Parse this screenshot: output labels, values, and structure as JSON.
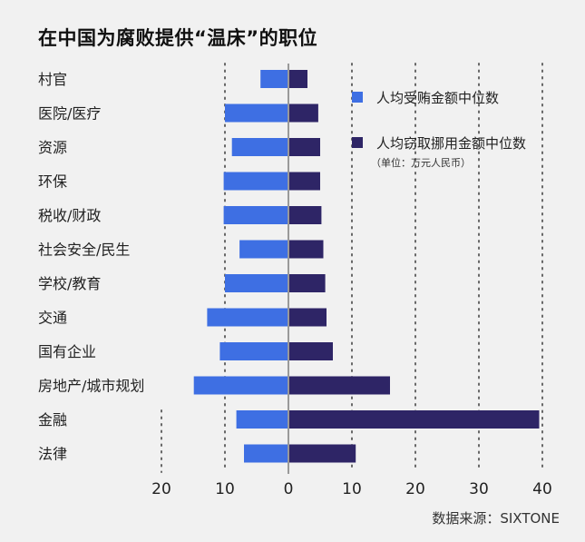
{
  "source": "数据来源：SIXTONE",
  "chart_data": {
    "type": "bar",
    "orientation": "horizontal-diverging",
    "title": "在中国为腐败提供“温床”的职位",
    "categories": [
      "村官",
      "医院/医疗",
      "资源",
      "环保",
      "税收/财政",
      "社会安全/民生",
      "学校/教育",
      "交通",
      "国有企业",
      "房地产/城市规划",
      "金融",
      "法律"
    ],
    "series": [
      {
        "name": "人均受贿金额中位数",
        "direction": "left",
        "color": "#3e6fe3",
        "values": [
          4.4,
          10,
          8.9,
          10.2,
          10.2,
          7.7,
          10,
          12.8,
          10.8,
          14.9,
          8.2,
          7
        ]
      },
      {
        "name": "人均窃取挪用金额中位数",
        "direction": "right",
        "color": "#2e2566",
        "values": [
          3,
          4.7,
          5,
          5,
          5.2,
          5.5,
          5.8,
          6,
          7,
          16,
          39.5,
          10.6
        ]
      }
    ],
    "legend_note": "（单位：万元人民币）",
    "ticks": [
      {
        "label": "20",
        "value": -20
      },
      {
        "label": "10",
        "value": -10
      },
      {
        "label": "0",
        "value": 0
      },
      {
        "label": "10",
        "value": 10
      },
      {
        "label": "20",
        "value": 20
      },
      {
        "label": "30",
        "value": 30
      },
      {
        "label": "40",
        "value": 40
      }
    ],
    "xlim": [
      -20,
      40
    ],
    "grid": true,
    "legend_position": "top-right"
  }
}
